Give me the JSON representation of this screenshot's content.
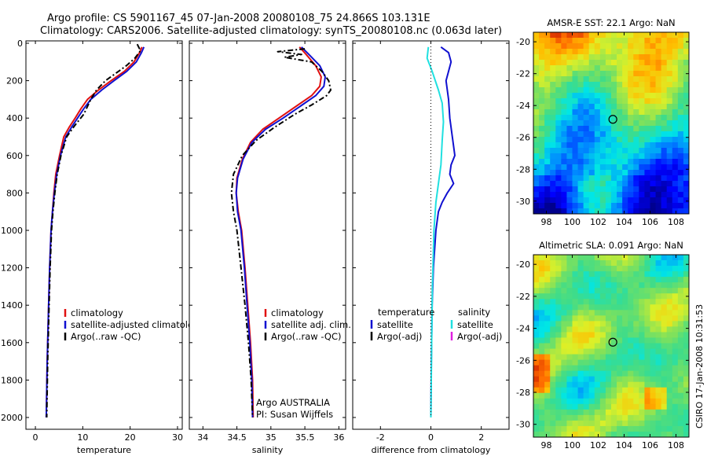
{
  "header": {
    "line1": "Argo profile: CS 5901167_45 07-Jan-2008 20080108_75 24.866S 103.131E",
    "line2": "Climatology: CARS2006. Satellite-adjusted climatology: synTS_20080108.nc (0.063d later)"
  },
  "colors": {
    "climatology": "#e01010",
    "satellite": "#1010d0",
    "argo": "#000000",
    "sat_salinity": "#20e0e0",
    "argo_salinity": "#e020e0"
  },
  "chart_data": [
    {
      "type": "line",
      "xlabel": "temperature",
      "ylabel": "",
      "xlim": [
        -2,
        31
      ],
      "ylim": [
        2080,
        -20
      ],
      "y_reversed": true,
      "xticks": [
        "0",
        "10",
        "20",
        "30"
      ],
      "yticks": [
        "0",
        "200",
        "400",
        "600",
        "800",
        "1000",
        "1200",
        "1400",
        "1600",
        "1800",
        "2000"
      ],
      "legend": [
        "climatology",
        "satellite-adjusted climatology",
        "Argo(..raw -QC)"
      ],
      "series": [
        {
          "name": "climatology",
          "x": [
            22.5,
            22.0,
            20.8,
            18.8,
            16.0,
            13.3,
            11.0,
            9.6,
            8.4,
            7.1,
            6.0,
            5.1,
            4.3,
            3.9,
            3.6,
            3.3,
            3.0,
            2.8,
            2.5,
            2.3
          ],
          "y": [
            20,
            50,
            100,
            150,
            200,
            250,
            300,
            350,
            400,
            450,
            500,
            600,
            700,
            800,
            900,
            1000,
            1200,
            1400,
            1700,
            2000
          ]
        },
        {
          "name": "satellite-adjusted climatology",
          "x": [
            22.9,
            22.4,
            21.3,
            19.3,
            16.6,
            14.0,
            11.7,
            10.2,
            8.9,
            7.6,
            6.4,
            5.3,
            4.5,
            4.0,
            3.6,
            3.3,
            3.0,
            2.8,
            2.5,
            2.3
          ],
          "y": [
            20,
            50,
            100,
            150,
            200,
            250,
            300,
            350,
            400,
            450,
            500,
            600,
            700,
            800,
            900,
            1000,
            1200,
            1400,
            1700,
            2000
          ]
        },
        {
          "name": "Argo(..raw -QC)",
          "x": [
            21.5,
            21.8,
            22.2,
            21.0,
            19.2,
            17.0,
            14.8,
            12.9,
            11.7,
            10.2,
            8.3,
            6.6,
            5.4,
            4.6,
            4.1,
            3.7,
            3.4,
            3.1,
            2.9,
            2.6,
            2.4
          ],
          "y": [
            5,
            20,
            40,
            80,
            120,
            160,
            200,
            250,
            300,
            380,
            440,
            500,
            600,
            700,
            800,
            900,
            1000,
            1200,
            1400,
            1700,
            2000
          ]
        }
      ]
    },
    {
      "type": "line",
      "xlabel": "salinity",
      "ylabel": "",
      "xlim": [
        33.8,
        36.1
      ],
      "ylim": [
        2080,
        -20
      ],
      "y_reversed": true,
      "xticks": [
        "34",
        "34.5",
        "35",
        "35.5",
        "36"
      ],
      "yticks": [],
      "legend": [
        "climatology",
        "satellite adj. clim.",
        "Argo(..raw -QC)"
      ],
      "annotations": [
        "Argo AUSTRALIA",
        "PI: Susan Wijffels"
      ],
      "series": [
        {
          "name": "climatology",
          "x": [
            35.42,
            35.52,
            35.66,
            35.74,
            35.72,
            35.6,
            35.4,
            35.12,
            34.88,
            34.7,
            34.58,
            34.5,
            34.49,
            34.52,
            34.57,
            34.62,
            34.66,
            34.7,
            34.73,
            34.74
          ],
          "y": [
            20,
            60,
            120,
            180,
            230,
            280,
            330,
            400,
            460,
            530,
            620,
            720,
            800,
            900,
            1000,
            1200,
            1400,
            1600,
            1800,
            2000
          ]
        },
        {
          "name": "satellite adj. clim.",
          "x": [
            35.45,
            35.56,
            35.72,
            35.8,
            35.78,
            35.66,
            35.46,
            35.18,
            34.92,
            34.72,
            34.59,
            34.51,
            34.49,
            34.51,
            34.56,
            34.61,
            34.65,
            34.69,
            34.72,
            34.73
          ],
          "y": [
            20,
            60,
            120,
            180,
            230,
            280,
            330,
            400,
            460,
            530,
            620,
            720,
            800,
            900,
            1000,
            1200,
            1400,
            1600,
            1800,
            2000
          ]
        },
        {
          "name": "Argo(..raw -QC)",
          "x": [
            35.5,
            35.1,
            35.45,
            35.2,
            35.6,
            35.75,
            35.85,
            35.88,
            35.82,
            35.6,
            35.35,
            35.05,
            34.78,
            34.58,
            34.45,
            34.42,
            34.45,
            34.5,
            34.56,
            34.62,
            34.67,
            34.71,
            34.73
          ],
          "y": [
            30,
            45,
            60,
            75,
            100,
            150,
            200,
            250,
            280,
            330,
            380,
            450,
            520,
            600,
            700,
            800,
            900,
            1000,
            1200,
            1400,
            1600,
            1800,
            2000
          ]
        }
      ]
    },
    {
      "type": "line",
      "xlabel": "difference from climatology",
      "ylabel": "",
      "xlim": [
        -3.1,
        3.1
      ],
      "ylim": [
        2080,
        -20
      ],
      "y_reversed": true,
      "xticks": [
        "-2",
        "0",
        "2"
      ],
      "yticks": [],
      "legend": [
        {
          "group": "temperature",
          "items": [
            "satellite",
            "Argo(-adj)"
          ]
        },
        {
          "group": "salinity",
          "items": [
            "satellite",
            "Argo(-adj)"
          ]
        }
      ],
      "series": [
        {
          "name": "satellite",
          "group": "temperature",
          "x": [
            0.4,
            0.7,
            0.8,
            0.7,
            0.6,
            0.7,
            0.75,
            0.85,
            0.95,
            0.8,
            0.75,
            0.9,
            0.65,
            0.45,
            0.3,
            0.2,
            0.1,
            0.05,
            0.02,
            0.0
          ],
          "y": [
            20,
            50,
            100,
            150,
            200,
            300,
            400,
            500,
            600,
            650,
            700,
            750,
            800,
            850,
            900,
            1000,
            1200,
            1400,
            1700,
            2000
          ]
        },
        {
          "name": "satellite",
          "group": "salinity",
          "x": [
            -0.1,
            -0.15,
            0.05,
            0.3,
            0.45,
            0.5,
            0.45,
            0.4,
            0.3,
            0.2,
            0.12,
            0.06,
            0.03,
            0.0
          ],
          "y": [
            20,
            80,
            150,
            250,
            320,
            420,
            520,
            650,
            750,
            850,
            1000,
            1300,
            1600,
            2000
          ]
        },
        {
          "name": "zero-line",
          "x": [
            0,
            0
          ],
          "y": [
            0,
            2000
          ]
        }
      ]
    }
  ],
  "maps": [
    {
      "title": "AMSR-E SST: 22.1 Argo: NaN",
      "xticks": [
        "98",
        "100",
        "102",
        "104",
        "106",
        "108"
      ],
      "yticks": [
        "-20",
        "-22",
        "-24",
        "-26",
        "-28",
        "-30"
      ],
      "xlim": [
        97,
        109
      ],
      "ylim": [
        -30.8,
        -19.4
      ],
      "marker": {
        "lon": 103.131,
        "lat": -24.866
      }
    },
    {
      "title": "Altimetric SLA: 0.091 Argo: NaN",
      "xticks": [
        "98",
        "100",
        "102",
        "104",
        "106",
        "108"
      ],
      "yticks": [
        "-20",
        "-22",
        "-24",
        "-26",
        "-28",
        "-30"
      ],
      "xlim": [
        97,
        109
      ],
      "ylim": [
        -30.8,
        -19.4
      ],
      "marker": {
        "lon": 103.131,
        "lat": -24.866
      }
    }
  ],
  "stamp": "CSIRO 17-Jan-2008 10:31:53"
}
